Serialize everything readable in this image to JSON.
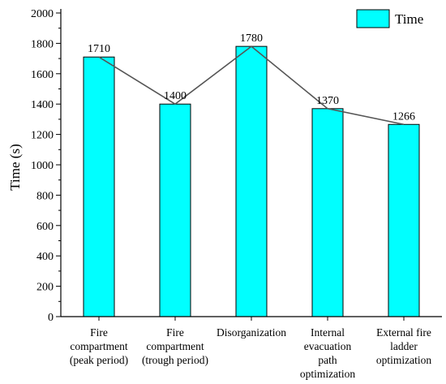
{
  "chart_data": {
    "type": "bar",
    "ylabel": "Time (s)",
    "ylim": [
      0,
      2000
    ],
    "yticks": [
      0,
      200,
      400,
      600,
      800,
      1000,
      1200,
      1400,
      1600,
      1800,
      2000
    ],
    "grid": false,
    "legend_position": "top-right",
    "categories": [
      [
        "Fire",
        "compartment",
        "(peak period)"
      ],
      [
        "Fire",
        "compartment",
        "(trough period)"
      ],
      [
        "Disorganization"
      ],
      [
        "Internal",
        "evacuation",
        "path",
        "optimization"
      ],
      [
        "External fire",
        "ladder",
        "optimization"
      ]
    ],
    "series": [
      {
        "name": "Time",
        "values": [
          1710,
          1400,
          1780,
          1370,
          1266
        ],
        "data_labels": [
          "1710",
          "1400",
          "1780",
          "1370",
          "1266"
        ],
        "color": "#00FFFF",
        "trend_line": true,
        "trend_line_color": "#555555"
      }
    ]
  }
}
